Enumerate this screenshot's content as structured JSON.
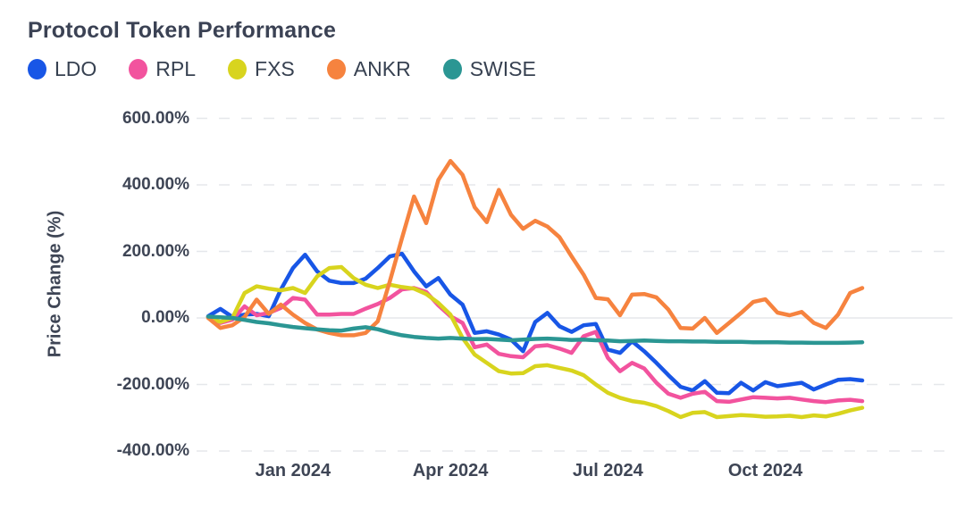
{
  "header": {
    "title": "Protocol Token Performance"
  },
  "legend": {
    "items": [
      {
        "label": "LDO",
        "color": "#1856e6"
      },
      {
        "label": "RPL",
        "color": "#f2539e"
      },
      {
        "label": "FXS",
        "color": "#d8d41e"
      },
      {
        "label": "ANKR",
        "color": "#f6833f"
      },
      {
        "label": "SWISE",
        "color": "#2b9693"
      }
    ]
  },
  "chart_data": {
    "type": "line",
    "title": "Protocol Token Performance",
    "xlabel": "",
    "ylabel": "Price Change (%)",
    "x_unit": "weeks (Nov 2023 - Nov 2024)",
    "x_tick_labels": [
      "Jan 2024",
      "Apr 2024",
      "Jul 2024",
      "Oct 2024"
    ],
    "x_tick_indices": [
      7,
      20,
      33,
      46
    ],
    "y_tick_labels": [
      "600.00%",
      "400.00%",
      "200.00%",
      "0.00%",
      "-200.00%",
      "-400.00%"
    ],
    "y_tick_values": [
      600,
      400,
      200,
      0,
      -200,
      -400
    ],
    "ylim": [
      -430,
      640
    ],
    "grid": "horizontal dashed, zero line solid",
    "legend_position": "top-left",
    "grid_color": "#e5e7eb",
    "series": [
      {
        "name": "LDO",
        "color": "#1856e6",
        "values": [
          5,
          27,
          3,
          10,
          12,
          5,
          85,
          150,
          190,
          140,
          112,
          105,
          105,
          118,
          150,
          185,
          193,
          140,
          95,
          120,
          70,
          40,
          -45,
          -40,
          -50,
          -65,
          -100,
          -12,
          15,
          -25,
          -42,
          -22,
          -18,
          -95,
          -105,
          -70,
          -100,
          -135,
          -172,
          -207,
          -218,
          -190,
          -225,
          -226,
          -195,
          -218,
          -193,
          -205,
          -200,
          -195,
          -215,
          -200,
          -186,
          -184,
          -188
        ]
      },
      {
        "name": "RPL",
        "color": "#f2539e",
        "values": [
          3,
          -15,
          -5,
          35,
          8,
          15,
          30,
          60,
          55,
          10,
          10,
          12,
          12,
          28,
          42,
          60,
          86,
          90,
          78,
          38,
          5,
          -15,
          -88,
          -80,
          -108,
          -115,
          -118,
          -85,
          -82,
          -92,
          -105,
          -55,
          -42,
          -120,
          -160,
          -135,
          -152,
          -195,
          -228,
          -240,
          -228,
          -222,
          -250,
          -252,
          -245,
          -238,
          -240,
          -242,
          -240,
          -245,
          -250,
          -253,
          -248,
          -246,
          -250
        ]
      },
      {
        "name": "FXS",
        "color": "#d8d41e",
        "values": [
          2,
          -12,
          0,
          75,
          95,
          88,
          83,
          90,
          75,
          125,
          150,
          153,
          120,
          100,
          90,
          100,
          93,
          88,
          72,
          45,
          10,
          -60,
          -110,
          -135,
          -160,
          -167,
          -166,
          -145,
          -142,
          -150,
          -158,
          -172,
          -200,
          -225,
          -240,
          -250,
          -255,
          -265,
          -280,
          -298,
          -285,
          -283,
          -298,
          -295,
          -292,
          -294,
          -297,
          -296,
          -294,
          -298,
          -293,
          -296,
          -288,
          -278,
          -270
        ]
      },
      {
        "name": "ANKR",
        "color": "#f6833f",
        "values": [
          0,
          -30,
          -22,
          3,
          55,
          12,
          40,
          10,
          -15,
          -35,
          -45,
          -52,
          -52,
          -45,
          -10,
          110,
          240,
          365,
          285,
          415,
          472,
          430,
          333,
          288,
          385,
          310,
          268,
          292,
          275,
          243,
          185,
          130,
          60,
          56,
          8,
          70,
          72,
          62,
          25,
          -30,
          -32,
          0,
          -45,
          -15,
          15,
          48,
          56,
          16,
          8,
          18,
          -15,
          -30,
          10,
          75,
          90
        ]
      },
      {
        "name": "SWISE",
        "color": "#2b9693",
        "values": [
          4,
          2,
          0,
          -6,
          -12,
          -16,
          -22,
          -27,
          -31,
          -34,
          -37,
          -38,
          -32,
          -28,
          -34,
          -44,
          -52,
          -57,
          -60,
          -62,
          -60,
          -62,
          -64,
          -63,
          -65,
          -67,
          -65,
          -63,
          -62,
          -64,
          -66,
          -65,
          -67,
          -68,
          -70,
          -69,
          -68,
          -69,
          -70,
          -70,
          -71,
          -71,
          -72,
          -72,
          -72,
          -73,
          -73,
          -73,
          -74,
          -74,
          -75,
          -75,
          -75,
          -74,
          -73
        ]
      }
    ]
  }
}
